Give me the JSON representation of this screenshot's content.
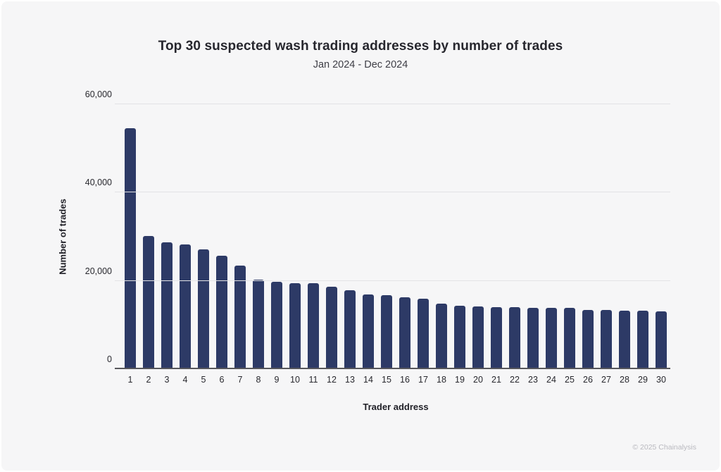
{
  "chart_data": {
    "type": "bar",
    "title": "Top 30 suspected wash trading addresses by number of trades",
    "subtitle": "Jan 2024 - Dec 2024",
    "xlabel": "Trader address",
    "ylabel": "Number of trades",
    "categories": [
      "1",
      "2",
      "3",
      "4",
      "5",
      "6",
      "7",
      "8",
      "9",
      "10",
      "11",
      "12",
      "13",
      "14",
      "15",
      "16",
      "17",
      "18",
      "19",
      "20",
      "21",
      "22",
      "23",
      "24",
      "25",
      "26",
      "27",
      "28",
      "29",
      "30"
    ],
    "values": [
      54500,
      30200,
      28700,
      28200,
      27100,
      25700,
      23400,
      20200,
      19800,
      19500,
      19400,
      18600,
      17800,
      16900,
      16800,
      16300,
      15900,
      14900,
      14300,
      14250,
      14100,
      14050,
      13950,
      13900,
      13850,
      13450,
      13400,
      13250,
      13200,
      13100
    ],
    "ylim": [
      0,
      60000
    ],
    "yticks": [
      {
        "value": 0,
        "label": "0"
      },
      {
        "value": 20000,
        "label": "20,000"
      },
      {
        "value": 40000,
        "label": "40,000"
      },
      {
        "value": 60000,
        "label": "60,000"
      }
    ],
    "grid": "horizontal",
    "legend": "none",
    "bar_color": "#2d3a66"
  },
  "footer": {
    "credit": "© 2025 Chainalysis"
  }
}
